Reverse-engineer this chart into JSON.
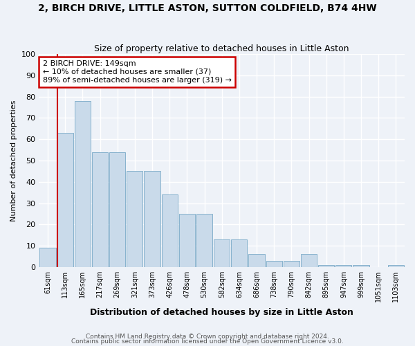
{
  "title": "2, BIRCH DRIVE, LITTLE ASTON, SUTTON COLDFIELD, B74 4HW",
  "subtitle": "Size of property relative to detached houses in Little Aston",
  "xlabel": "Distribution of detached houses by size in Little Aston",
  "ylabel": "Number of detached properties",
  "bar_color": "#c9daea",
  "bar_edge_color": "#7aaac8",
  "background_color": "#eef2f8",
  "grid_color": "#ffffff",
  "categories": [
    "61sqm",
    "113sqm",
    "165sqm",
    "217sqm",
    "269sqm",
    "321sqm",
    "373sqm",
    "426sqm",
    "478sqm",
    "530sqm",
    "582sqm",
    "634sqm",
    "686sqm",
    "738sqm",
    "790sqm",
    "842sqm",
    "895sqm",
    "947sqm",
    "999sqm",
    "1051sqm",
    "1103sqm"
  ],
  "values": [
    9,
    63,
    78,
    54,
    54,
    45,
    45,
    34,
    25,
    25,
    13,
    13,
    6,
    3,
    3,
    6,
    1,
    1,
    1,
    0,
    1
  ],
  "ylim": [
    0,
    100
  ],
  "yticks": [
    0,
    10,
    20,
    30,
    40,
    50,
    60,
    70,
    80,
    90,
    100
  ],
  "annotation_text": "2 BIRCH DRIVE: 149sqm\n← 10% of detached houses are smaller (37)\n89% of semi-detached houses are larger (319) →",
  "annotation_box_color": "#ffffff",
  "annotation_box_edge": "#cc0000",
  "marker_line_color": "#cc0000",
  "footnote1": "Contains HM Land Registry data © Crown copyright and database right 2024.",
  "footnote2": "Contains public sector information licensed under the Open Government Licence v3.0."
}
